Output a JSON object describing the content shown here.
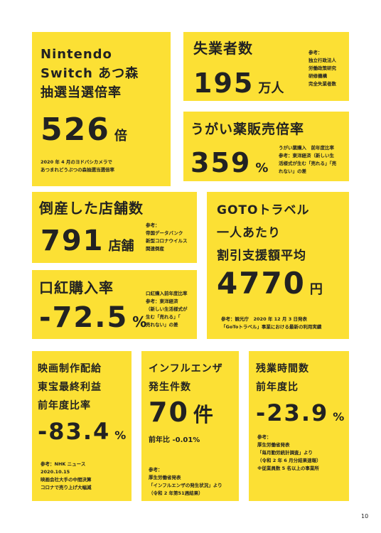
{
  "boxes": [
    {
      "title": [
        "Nintendo",
        "Switch あつ森",
        "抽選当選倍率"
      ],
      "number": "526",
      "unit": "倍",
      "note": [
        "2020 年 4 月のヨドバシカメラで",
        "あつまれどうぶつの森抽選当選倍率"
      ]
    },
    {
      "title": [
        "失業者数"
      ],
      "number": "195",
      "unit": "万人",
      "note": [
        "参考：",
        "独立行政法人",
        "労働政策研究",
        "研修機構",
        "完全失業者数"
      ]
    },
    {
      "title": [
        "うがい薬販売倍率"
      ],
      "number": "359",
      "unit": "%",
      "note": [
        "うがい薬購入　前年度比率",
        "参考：東洋経済（新しい生",
        "活様式が生む「売れる」「売",
        "れない」の差"
      ]
    },
    {
      "title": [
        "倒産した店舗数"
      ],
      "number": "791",
      "unit": "店舗",
      "note": [
        "参考：",
        "帝国データバンク",
        "新型コロナウイルス",
        "関連倒産"
      ]
    },
    {
      "title": [
        "GOTOトラベル",
        "一人あたり",
        "割引支援額平均"
      ],
      "number": "4770",
      "unit": "円",
      "note": [
        "参考：観光庁　2020 年 12 月 3 日発表",
        "「GoToトラベル」事業における最新の利用実績"
      ]
    },
    {
      "title": [
        "口紅購入率"
      ],
      "number": "-72.5",
      "unit": "%",
      "note": [
        "口紅購入前年度比率",
        "参考：東洋経済",
        "（新しい生活様式が",
        "生む「売れる」「",
        "売れない」の差"
      ]
    },
    {
      "title": [
        "映画制作配給",
        "東宝最終利益",
        "前年度比率"
      ],
      "number": "-83.4",
      "unit": "%",
      "note": [
        "参考：NHK ニュース",
        "2020.10.15",
        "映画会社大手の中間決算",
        "コロナで売り上げ大幅減"
      ]
    },
    {
      "title": [
        "インフルエンザ",
        "発生件数"
      ],
      "number": "70",
      "unit": "件",
      "sub": "前年比 -0.01%",
      "note": [
        "参考：",
        "厚生労働省発表",
        "「インフルエンザの発生状況」より",
        "（令和 2 年第51週結果）"
      ]
    },
    {
      "title": [
        "残業時間数",
        "前年度比"
      ],
      "number": "-23.9",
      "unit": "%",
      "note": [
        "参考：",
        "厚生労働省発表",
        "「毎月勤労統計調査」より",
        "（令和 2 年 6 月分結果速報）",
        "※従業員数 5 名以上の事業所"
      ]
    }
  ],
  "page_number": "10"
}
